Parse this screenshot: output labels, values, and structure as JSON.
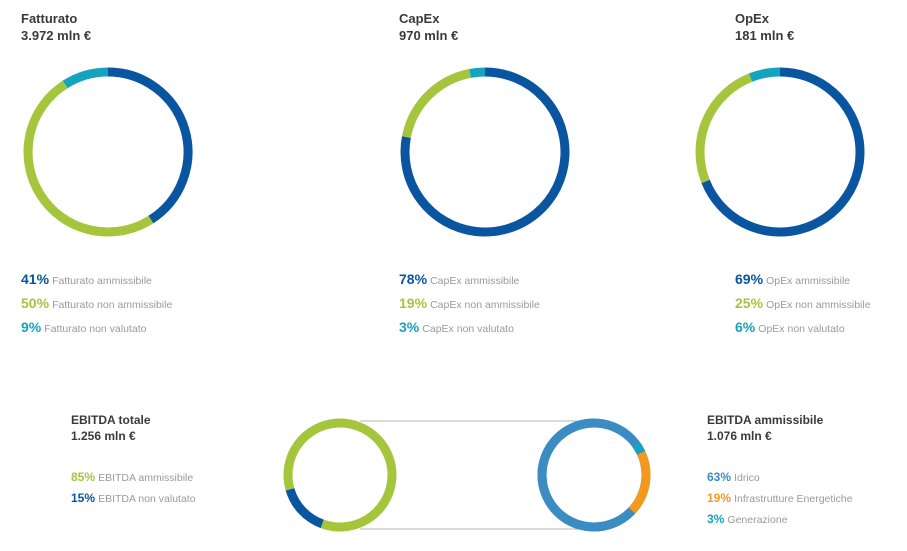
{
  "colors": {
    "blue": "#0a55a0",
    "green": "#a5c63c",
    "teal": "#16a3c0",
    "midblue": "#3b8cc2",
    "orange": "#f39a1e",
    "title": "#3a3a3a",
    "label": "#9a9a9a",
    "connector": "#b7b7b7"
  },
  "chart_data": [
    {
      "type": "pie",
      "title": "Fatturato",
      "subtitle": "3.972 mln €",
      "slices": [
        {
          "label": "Fatturato ammissibile",
          "pct_text": "41%",
          "value": 41,
          "color": "#0a55a0"
        },
        {
          "label": "Fatturato non ammissibile",
          "pct_text": "50%",
          "value": 50,
          "color": "#a5c63c"
        },
        {
          "label": "Fatturato non valutato",
          "pct_text": "9%",
          "value": 9,
          "color": "#16a3c0"
        }
      ]
    },
    {
      "type": "pie",
      "title": "CapEx",
      "subtitle": "970 mln €",
      "slices": [
        {
          "label": "CapEx ammissibile",
          "pct_text": "78%",
          "value": 78,
          "color": "#0a55a0"
        },
        {
          "label": "CapEx non ammissibile",
          "pct_text": "19%",
          "value": 19,
          "color": "#a5c63c"
        },
        {
          "label": "CapEx non valutato",
          "pct_text": "3%",
          "value": 3,
          "color": "#16a3c0"
        }
      ]
    },
    {
      "type": "pie",
      "title": "OpEx",
      "subtitle": "181 mln €",
      "slices": [
        {
          "label": "OpEx ammissibile",
          "pct_text": "69%",
          "value": 69,
          "color": "#0a55a0"
        },
        {
          "label": "OpEx non ammissibile",
          "pct_text": "25%",
          "value": 25,
          "color": "#a5c63c"
        },
        {
          "label": "OpEx non valutato",
          "pct_text": "6%",
          "value": 6,
          "color": "#16a3c0"
        }
      ]
    },
    {
      "type": "pie",
      "title": "EBITDA totale",
      "subtitle": "1.256 mln €",
      "slices": [
        {
          "label": "EBITDA ammissibile",
          "pct_text": "85%",
          "value": 85,
          "color": "#a5c63c"
        },
        {
          "label": "EBITDA non valutato",
          "pct_text": "15%",
          "value": 15,
          "color": "#0a55a0"
        }
      ]
    },
    {
      "type": "pie",
      "title": "EBITDA ammissibile",
      "subtitle": "1.076 mln €",
      "slices": [
        {
          "label": "Idrico",
          "pct_text": "63%",
          "value": 63,
          "color": "#3b8cc2"
        },
        {
          "label": "Infrastrutture Energetiche",
          "pct_text": "19%",
          "value": 19,
          "color": "#f39a1e"
        },
        {
          "label": "Generazione",
          "pct_text": "3%",
          "value": 3,
          "color": "#16a3c0"
        }
      ]
    }
  ]
}
